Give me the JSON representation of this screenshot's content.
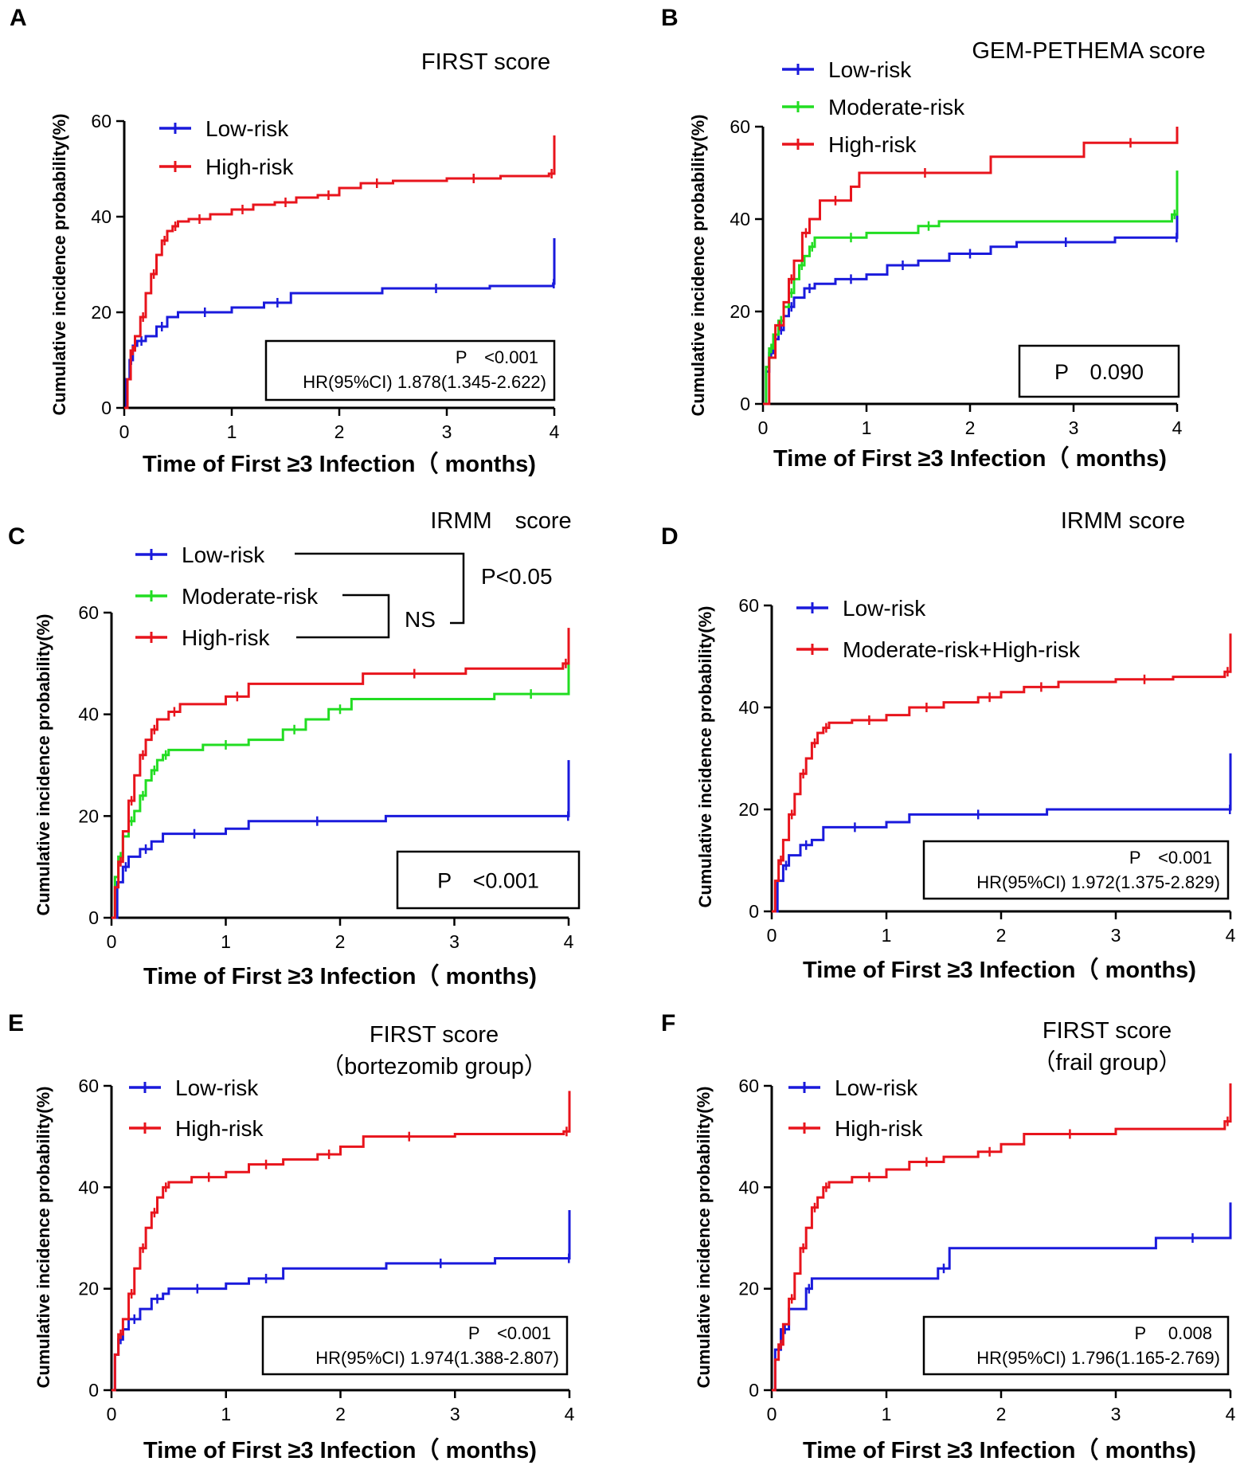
{
  "colors": {
    "low": "#1a1adc",
    "moderate": "#22dd22",
    "high": "#e8141c",
    "axis": "#000000"
  },
  "chart_data": [
    {
      "panel": "A",
      "type": "line",
      "step": true,
      "title": [
        "FIRST score"
      ],
      "xlabel": "Time of First ≥3 Infection（ months)",
      "ylabel": "Cumulative incidence probability(%)",
      "xlim": [
        0,
        4
      ],
      "ylim": [
        0,
        60
      ],
      "xticks": [
        0,
        1,
        2,
        3,
        4
      ],
      "yticks": [
        0,
        20,
        40,
        60
      ],
      "legend": [
        "Low-risk",
        "High-risk"
      ],
      "stats": [
        "P　<0.001",
        "HR(95%CI) 1.878(1.345-2.622)"
      ],
      "series": [
        {
          "name": "Low-risk",
          "color": "low",
          "x": [
            0,
            0.02,
            0.05,
            0.08,
            0.12,
            0.2,
            0.3,
            0.4,
            0.5,
            1.0,
            1.3,
            1.55,
            2.4,
            3.4,
            3.99,
            4.0
          ],
          "y": [
            0,
            6,
            10,
            13,
            14,
            15,
            17,
            19,
            20,
            21,
            22,
            24,
            25,
            25.5,
            26,
            35.5
          ]
        },
        {
          "name": "High-risk",
          "color": "high",
          "x": [
            0,
            0.03,
            0.06,
            0.1,
            0.15,
            0.2,
            0.25,
            0.3,
            0.35,
            0.4,
            0.45,
            0.5,
            0.6,
            0.8,
            1.0,
            1.2,
            1.4,
            1.6,
            1.8,
            2.0,
            2.2,
            2.5,
            3.0,
            3.5,
            3.95,
            4.0
          ],
          "y": [
            0,
            6,
            12,
            15,
            19,
            24,
            28,
            32,
            35,
            37,
            38,
            39,
            39.5,
            40.5,
            41.5,
            42.5,
            43,
            44,
            44.5,
            46,
            47,
            47.5,
            48,
            48.5,
            49,
            57
          ]
        }
      ]
    },
    {
      "panel": "B",
      "type": "line",
      "step": true,
      "title": [
        "GEM-PETHEMA score"
      ],
      "xlabel": "Time of First ≥3 Infection（ months)",
      "ylabel": "Cumulative incidence probability(%)",
      "xlim": [
        0,
        4
      ],
      "ylim": [
        0,
        60
      ],
      "xticks": [
        0,
        1,
        2,
        3,
        4
      ],
      "yticks": [
        0,
        20,
        40,
        60
      ],
      "legend": [
        "Low-risk",
        "Moderate-risk",
        "High-risk"
      ],
      "stats": [
        "P　0.090"
      ],
      "series": [
        {
          "name": "Low-risk",
          "color": "low",
          "x": [
            0,
            0.03,
            0.06,
            0.1,
            0.15,
            0.2,
            0.25,
            0.3,
            0.4,
            0.5,
            0.7,
            1.0,
            1.2,
            1.5,
            1.8,
            2.2,
            2.45,
            3.4,
            3.99,
            4.0
          ],
          "y": [
            0,
            7,
            11,
            14,
            16,
            19,
            21,
            23,
            25,
            26,
            27,
            28,
            30,
            31,
            32.5,
            34,
            35,
            36,
            36,
            44
          ]
        },
        {
          "name": "Moderate-risk",
          "color": "moderate",
          "x": [
            0,
            0.03,
            0.06,
            0.1,
            0.15,
            0.2,
            0.25,
            0.3,
            0.35,
            0.4,
            0.45,
            0.5,
            0.7,
            1.0,
            1.5,
            1.7,
            3.95,
            4.0
          ],
          "y": [
            0,
            8,
            12,
            15,
            18,
            21,
            24,
            27,
            30,
            32,
            34,
            36,
            36,
            37,
            38.5,
            39.5,
            41,
            50.5
          ]
        },
        {
          "name": "High-risk",
          "color": "high",
          "x": [
            0,
            0.06,
            0.12,
            0.2,
            0.25,
            0.3,
            0.38,
            0.45,
            0.55,
            0.85,
            0.93,
            2.2,
            3.1,
            4.0
          ],
          "y": [
            0,
            10,
            17,
            22,
            27,
            31,
            37,
            40,
            44,
            47,
            50,
            53.5,
            56.5,
            60
          ]
        }
      ]
    },
    {
      "panel": "C",
      "type": "line",
      "step": true,
      "title": [
        "IRMM　score"
      ],
      "xlabel": "Time of First ≥3 Infection（ months)",
      "ylabel": "Cumulative incidence probability(%)",
      "xlim": [
        0,
        4
      ],
      "ylim": [
        0,
        60
      ],
      "xticks": [
        0,
        1,
        2,
        3,
        4
      ],
      "yticks": [
        0,
        20,
        40,
        60
      ],
      "legend": [
        "Low-risk",
        "Moderate-risk",
        "High-risk"
      ],
      "stats": [
        "P　<0.001"
      ],
      "annotations": [
        "P<0.05",
        "NS"
      ],
      "series": [
        {
          "name": "Low-risk",
          "color": "low",
          "x": [
            0,
            0.05,
            0.1,
            0.15,
            0.25,
            0.35,
            0.45,
            1.0,
            1.2,
            2.4,
            3.99,
            4.0
          ],
          "y": [
            0,
            7,
            10,
            12,
            13.5,
            15,
            16.5,
            17.5,
            19,
            20,
            20,
            31
          ]
        },
        {
          "name": "Moderate-risk",
          "color": "moderate",
          "x": [
            0,
            0.03,
            0.06,
            0.1,
            0.15,
            0.2,
            0.25,
            0.3,
            0.35,
            0.4,
            0.45,
            0.5,
            0.8,
            1.2,
            1.5,
            1.7,
            1.9,
            2.1,
            3.35,
            3.99,
            4.0
          ],
          "y": [
            0,
            8,
            12,
            16,
            19,
            21,
            24,
            27,
            29,
            31,
            32,
            33,
            34,
            35,
            37,
            39,
            41,
            43,
            44,
            44,
            52.5
          ]
        },
        {
          "name": "High-risk",
          "color": "high",
          "x": [
            0,
            0.03,
            0.06,
            0.1,
            0.15,
            0.2,
            0.25,
            0.3,
            0.35,
            0.4,
            0.5,
            0.6,
            1.0,
            1.2,
            2.2,
            3.1,
            3.95,
            4.0
          ],
          "y": [
            0,
            6,
            11,
            17,
            23,
            28,
            32,
            35,
            37,
            39,
            40.5,
            42,
            43.5,
            46,
            48,
            49,
            50,
            57
          ]
        }
      ]
    },
    {
      "panel": "D",
      "type": "line",
      "step": true,
      "title": [
        "IRMM score"
      ],
      "xlabel": "Time of First ≥3 Infection（ months)",
      "ylabel": "Cumulative incidence probability(%)",
      "xlim": [
        0,
        4
      ],
      "ylim": [
        0,
        60
      ],
      "xticks": [
        0,
        1,
        2,
        3,
        4
      ],
      "yticks": [
        0,
        20,
        40,
        60
      ],
      "legend": [
        "Low-risk",
        "Moderate-risk+High-risk"
      ],
      "stats": [
        "P　<0.001",
        "HR(95%CI) 1.972(1.375-2.829)"
      ],
      "series": [
        {
          "name": "Low-risk",
          "color": "low",
          "x": [
            0,
            0.05,
            0.1,
            0.15,
            0.25,
            0.35,
            0.45,
            1.0,
            1.2,
            2.4,
            3.99,
            4.0
          ],
          "y": [
            0,
            6,
            9,
            11,
            13,
            14,
            16.5,
            17.5,
            19,
            20,
            20,
            31
          ]
        },
        {
          "name": "Moderate-risk+High-risk",
          "color": "high",
          "x": [
            0,
            0.03,
            0.06,
            0.1,
            0.15,
            0.2,
            0.25,
            0.3,
            0.35,
            0.4,
            0.45,
            0.5,
            0.7,
            1.0,
            1.2,
            1.5,
            1.8,
            2.0,
            2.2,
            2.5,
            3.0,
            3.5,
            3.95,
            4.0
          ],
          "y": [
            0,
            6,
            10,
            14,
            19,
            23,
            27,
            30,
            33,
            35,
            36,
            37,
            37.5,
            38.5,
            40,
            41,
            42,
            43,
            44,
            45,
            45.5,
            46,
            47,
            54.5
          ]
        }
      ]
    },
    {
      "panel": "E",
      "type": "line",
      "step": true,
      "title": [
        "FIRST score",
        "（bortezomib group）"
      ],
      "xlabel": "Time of First ≥3 Infection（ months)",
      "ylabel": "Cumulative incidence probability(%)",
      "xlim": [
        0,
        4
      ],
      "ylim": [
        0,
        60
      ],
      "xticks": [
        0,
        1,
        2,
        3,
        4
      ],
      "yticks": [
        0,
        20,
        40,
        60
      ],
      "legend": [
        "Low-risk",
        "High-risk"
      ],
      "stats": [
        "P　<0.001",
        "HR(95%CI) 1.974(1.388-2.807)"
      ],
      "series": [
        {
          "name": "Low-risk",
          "color": "low",
          "x": [
            0,
            0.03,
            0.06,
            0.1,
            0.15,
            0.25,
            0.35,
            0.45,
            0.5,
            1.0,
            1.2,
            1.5,
            2.4,
            3.35,
            3.99,
            4.0
          ],
          "y": [
            0,
            7,
            10,
            12,
            14,
            16,
            18,
            19,
            20,
            21,
            22,
            24,
            25,
            26,
            26,
            35.5
          ]
        },
        {
          "name": "High-risk",
          "color": "high",
          "x": [
            0,
            0.03,
            0.06,
            0.1,
            0.15,
            0.2,
            0.25,
            0.3,
            0.35,
            0.4,
            0.45,
            0.5,
            0.7,
            1.0,
            1.2,
            1.5,
            1.8,
            2.0,
            2.2,
            3.0,
            3.95,
            4.0
          ],
          "y": [
            0,
            7,
            11,
            14,
            19,
            24,
            28,
            32,
            35,
            38,
            40,
            41,
            42,
            43,
            44.5,
            45.5,
            46.5,
            48,
            50,
            50.5,
            51,
            59
          ]
        }
      ]
    },
    {
      "panel": "F",
      "type": "line",
      "step": true,
      "title": [
        "FIRST score",
        "（frail group）"
      ],
      "xlabel": "Time of First ≥3 Infection（ months)",
      "ylabel": "Cumulative incidence probability(%)",
      "xlim": [
        0,
        4
      ],
      "ylim": [
        0,
        60
      ],
      "xticks": [
        0,
        1,
        2,
        3,
        4
      ],
      "yticks": [
        0,
        20,
        40,
        60
      ],
      "legend": [
        "Low-risk",
        "High-risk"
      ],
      "stats": [
        "P　  0.008",
        "HR(95%CI) 1.796(1.165-2.769)"
      ],
      "series": [
        {
          "name": "Low-risk",
          "color": "low",
          "x": [
            0,
            0.03,
            0.08,
            0.15,
            0.3,
            0.35,
            1.45,
            1.55,
            3.35,
            3.99,
            4.0
          ],
          "y": [
            0,
            8,
            12,
            16,
            20,
            22,
            24,
            28,
            30,
            30,
            37
          ]
        },
        {
          "name": "High-risk",
          "color": "high",
          "x": [
            0,
            0.03,
            0.06,
            0.1,
            0.15,
            0.2,
            0.25,
            0.3,
            0.35,
            0.4,
            0.45,
            0.5,
            0.7,
            1.0,
            1.2,
            1.5,
            1.8,
            2.0,
            2.2,
            3.0,
            3.95,
            4.0
          ],
          "y": [
            0,
            6,
            9,
            13,
            18,
            23,
            28,
            32,
            36,
            38,
            40,
            41,
            42,
            43.5,
            45,
            46,
            47,
            48.5,
            50.5,
            51.5,
            53,
            60.5
          ]
        }
      ]
    }
  ]
}
